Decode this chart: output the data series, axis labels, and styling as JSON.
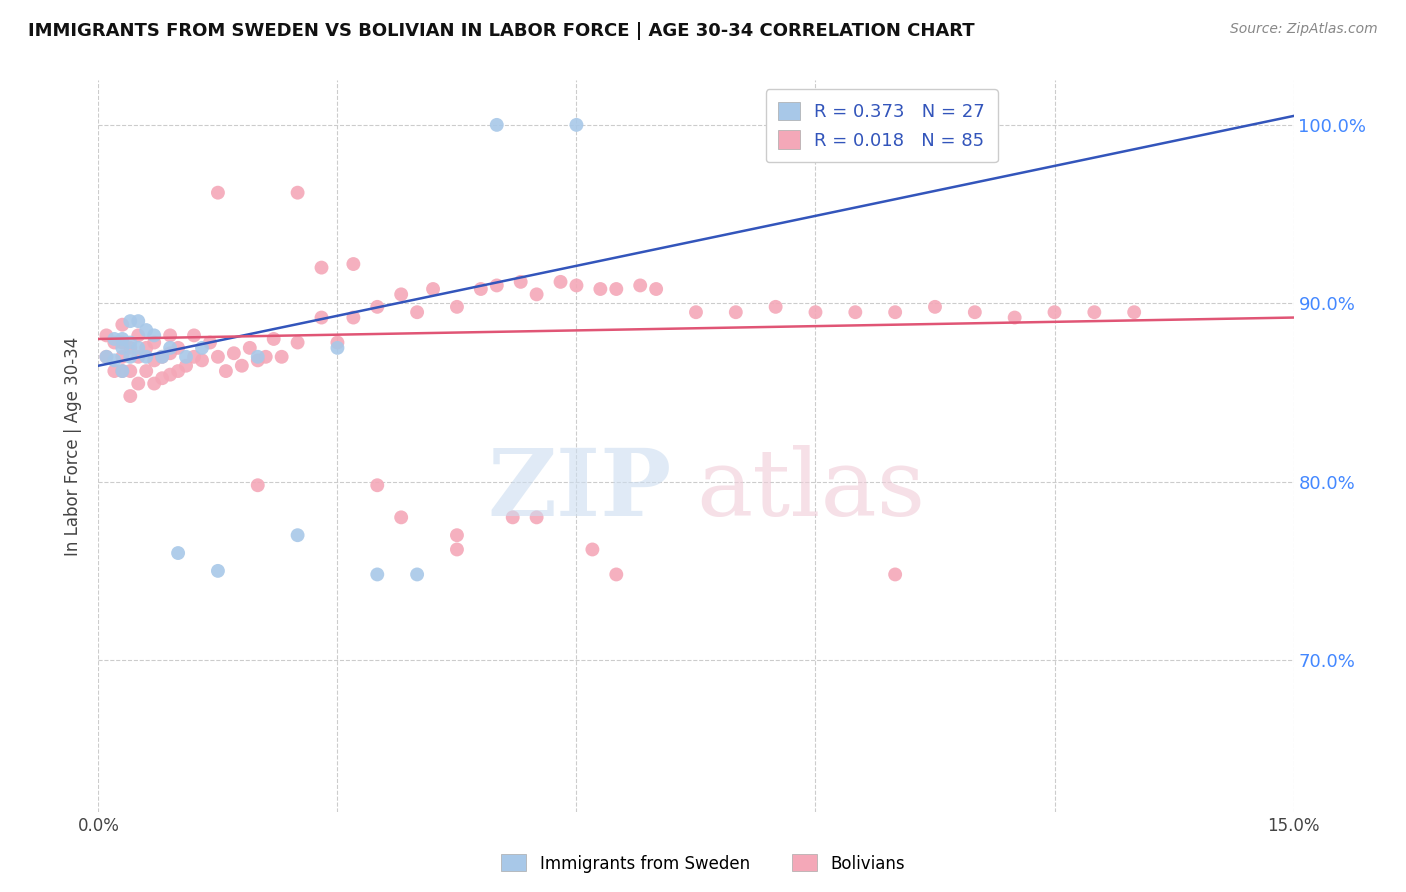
{
  "title": "IMMIGRANTS FROM SWEDEN VS BOLIVIAN IN LABOR FORCE | AGE 30-34 CORRELATION CHART",
  "source": "Source: ZipAtlas.com",
  "ylabel": "In Labor Force | Age 30-34",
  "ytick_labels": [
    "100.0%",
    "90.0%",
    "80.0%",
    "70.0%"
  ],
  "ytick_values": [
    1.0,
    0.9,
    0.8,
    0.7
  ],
  "xlim": [
    0.0,
    0.15
  ],
  "ylim": [
    0.615,
    1.025
  ],
  "sweden_color": "#a8c8e8",
  "bolivia_color": "#f4a8b8",
  "sweden_line_color": "#3355bb",
  "bolivia_line_color": "#e05575",
  "grid_color": "#cccccc",
  "sweden_x": [
    0.001,
    0.002,
    0.002,
    0.003,
    0.003,
    0.003,
    0.004,
    0.004,
    0.004,
    0.005,
    0.005,
    0.006,
    0.006,
    0.007,
    0.008,
    0.009,
    0.01,
    0.011,
    0.013,
    0.015,
    0.02,
    0.025,
    0.03,
    0.035,
    0.04,
    0.05,
    0.06
  ],
  "sweden_y": [
    0.87,
    0.868,
    0.88,
    0.862,
    0.875,
    0.88,
    0.87,
    0.878,
    0.89,
    0.875,
    0.89,
    0.87,
    0.885,
    0.882,
    0.87,
    0.875,
    0.76,
    0.87,
    0.875,
    0.75,
    0.87,
    0.77,
    0.875,
    0.748,
    0.748,
    1.0,
    1.0
  ],
  "bolivia_x": [
    0.001,
    0.001,
    0.002,
    0.002,
    0.003,
    0.003,
    0.003,
    0.003,
    0.004,
    0.004,
    0.004,
    0.005,
    0.005,
    0.005,
    0.006,
    0.006,
    0.007,
    0.007,
    0.007,
    0.008,
    0.008,
    0.009,
    0.009,
    0.009,
    0.01,
    0.01,
    0.011,
    0.012,
    0.012,
    0.013,
    0.014,
    0.015,
    0.016,
    0.017,
    0.018,
    0.019,
    0.02,
    0.021,
    0.022,
    0.023,
    0.025,
    0.028,
    0.03,
    0.032,
    0.035,
    0.038,
    0.04,
    0.042,
    0.045,
    0.048,
    0.05,
    0.053,
    0.055,
    0.058,
    0.06,
    0.063,
    0.065,
    0.068,
    0.07,
    0.075,
    0.08,
    0.085,
    0.09,
    0.095,
    0.1,
    0.105,
    0.11,
    0.115,
    0.12,
    0.125,
    0.062,
    0.035,
    0.02,
    0.038,
    0.052,
    0.045,
    0.055,
    0.028,
    0.032,
    0.015,
    0.025,
    0.045,
    0.065,
    0.1,
    0.13
  ],
  "bolivia_y": [
    0.882,
    0.87,
    0.862,
    0.878,
    0.87,
    0.862,
    0.878,
    0.888,
    0.848,
    0.862,
    0.875,
    0.855,
    0.87,
    0.882,
    0.862,
    0.875,
    0.855,
    0.868,
    0.878,
    0.858,
    0.87,
    0.86,
    0.872,
    0.882,
    0.862,
    0.875,
    0.865,
    0.87,
    0.882,
    0.868,
    0.878,
    0.87,
    0.862,
    0.872,
    0.865,
    0.875,
    0.868,
    0.87,
    0.88,
    0.87,
    0.878,
    0.892,
    0.878,
    0.892,
    0.898,
    0.905,
    0.895,
    0.908,
    0.898,
    0.908,
    0.91,
    0.912,
    0.905,
    0.912,
    0.91,
    0.908,
    0.908,
    0.91,
    0.908,
    0.895,
    0.895,
    0.898,
    0.895,
    0.895,
    0.895,
    0.898,
    0.895,
    0.892,
    0.895,
    0.895,
    0.762,
    0.798,
    0.798,
    0.78,
    0.78,
    0.762,
    0.78,
    0.92,
    0.922,
    0.962,
    0.962,
    0.77,
    0.748,
    0.748,
    0.895
  ],
  "sweden_line_x": [
    0.0,
    0.15
  ],
  "sweden_line_y": [
    0.865,
    1.005
  ],
  "bolivia_line_x": [
    0.0,
    0.15
  ],
  "bolivia_line_y": [
    0.88,
    0.892
  ]
}
